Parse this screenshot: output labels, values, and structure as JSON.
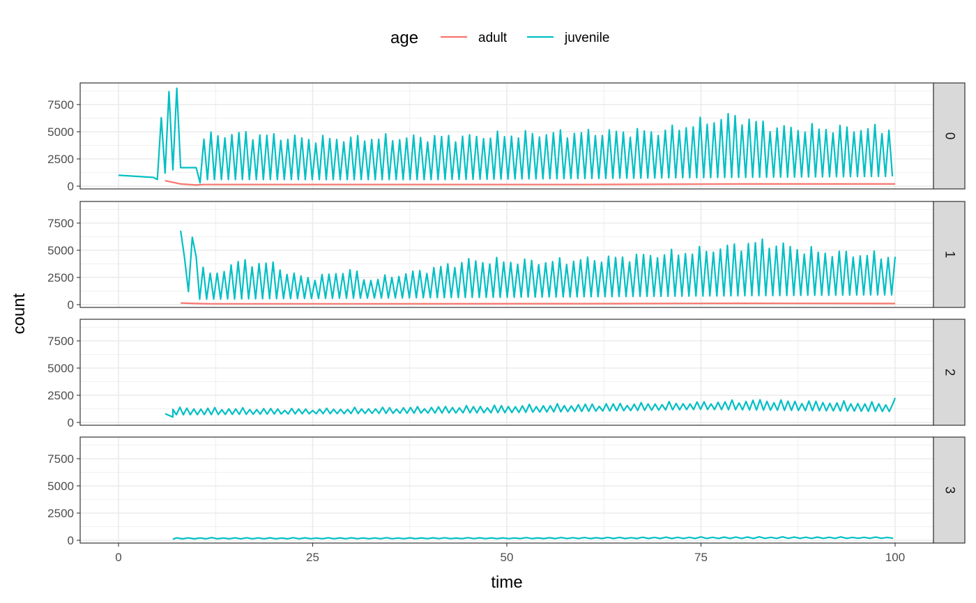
{
  "chart_data": {
    "type": "line",
    "xlabel": "time",
    "ylabel": "count",
    "xlim": [
      0,
      100
    ],
    "ylim": [
      0,
      9000
    ],
    "x_ticks": [
      0,
      25,
      50,
      75,
      100
    ],
    "x_tick_labels": [
      "0",
      "25",
      "50",
      "75",
      "100"
    ],
    "y_ticks": [
      0,
      2500,
      5000,
      7500
    ],
    "y_tick_labels": [
      "0",
      "2500",
      "5000",
      "7500"
    ],
    "facet_by": "stage",
    "facets": [
      "0",
      "1",
      "2",
      "3"
    ],
    "legend": {
      "title": "age",
      "position": "top",
      "entries": [
        {
          "label": "adult",
          "color": "#F8766D"
        },
        {
          "label": "juvenile",
          "color": "#00BFC4"
        }
      ]
    },
    "grid": true,
    "panels": [
      {
        "facet": "0",
        "series": [
          {
            "name": "adult",
            "x": [
              6,
              8,
              10,
              11,
              20,
              40,
              60,
              80,
              100
            ],
            "y": [
              500,
              200,
              100,
              150,
              150,
              150,
              150,
              200,
              200
            ]
          },
          {
            "name": "juvenile",
            "type": "oscillating",
            "keypoints": [
              [
                0,
                1000
              ],
              [
                4.5,
                800
              ],
              [
                5,
                600
              ],
              [
                5.5,
                6300
              ],
              [
                6,
                1200
              ],
              [
                6.5,
                8700
              ],
              [
                7,
                1500
              ],
              [
                7.5,
                9000
              ],
              [
                8,
                1700
              ],
              [
                10,
                1700
              ],
              [
                10.5,
                300
              ]
            ],
            "start": 11,
            "end": 100,
            "period": 0.9,
            "peak_env": [
              [
                11,
                4500
              ],
              [
                15,
                4800
              ],
              [
                25,
                4300
              ],
              [
                45,
                4500
              ],
              [
                55,
                4800
              ],
              [
                70,
                5000
              ],
              [
                79,
                6400
              ],
              [
                85,
                5300
              ],
              [
                100,
                5200
              ]
            ],
            "trough_env": [
              [
                11,
                600
              ],
              [
                40,
                600
              ],
              [
                100,
                900
              ]
            ]
          }
        ]
      },
      {
        "facet": "1",
        "series": [
          {
            "name": "adult",
            "x": [
              8,
              10,
              12,
              30,
              60,
              80,
              100
            ],
            "y": [
              150,
              100,
              80,
              80,
              90,
              120,
              100
            ]
          },
          {
            "name": "juvenile",
            "type": "oscillating",
            "keypoints": [
              [
                8,
                6800
              ],
              [
                8.5,
                4300
              ],
              [
                9,
                1200
              ],
              [
                9.5,
                6200
              ]
            ],
            "start": 10,
            "end": 100,
            "period": 0.9,
            "peak_env": [
              [
                10,
                4500
              ],
              [
                12,
                2500
              ],
              [
                15,
                3900
              ],
              [
                20,
                3700
              ],
              [
                22,
                2800
              ],
              [
                25,
                2400
              ],
              [
                30,
                3200
              ],
              [
                32,
                2200
              ],
              [
                40,
                3200
              ],
              [
                45,
                4000
              ],
              [
                55,
                3900
              ],
              [
                65,
                4300
              ],
              [
                75,
                4900
              ],
              [
                83,
                5700
              ],
              [
                90,
                4800
              ],
              [
                100,
                4400
              ]
            ],
            "trough_env": [
              [
                10,
                500
              ],
              [
                100,
                900
              ]
            ]
          }
        ]
      },
      {
        "facet": "2",
        "series": [
          {
            "name": "juvenile",
            "type": "oscillating",
            "keypoints": [
              [
                6,
                800
              ],
              [
                7,
                500
              ]
            ],
            "start": 7,
            "end": 100,
            "period": 0.9,
            "peak_env": [
              [
                7,
                1300
              ],
              [
                25,
                1200
              ],
              [
                50,
                1500
              ],
              [
                75,
                1800
              ],
              [
                82,
                2000
              ],
              [
                100,
                1700
              ]
            ],
            "trough_env": [
              [
                7,
                700
              ],
              [
                25,
                800
              ],
              [
                50,
                900
              ],
              [
                75,
                1200
              ],
              [
                100,
                1000
              ]
            ],
            "final": [
              100,
              2250
            ]
          }
        ]
      },
      {
        "facet": "3",
        "series": [
          {
            "name": "juvenile",
            "type": "oscillating",
            "keypoints": [
              [
                7,
                100
              ]
            ],
            "start": 7.5,
            "end": 100,
            "period": 1.5,
            "peak_env": [
              [
                7.5,
                220
              ],
              [
                50,
                220
              ],
              [
                82,
                300
              ],
              [
                100,
                270
              ]
            ],
            "trough_env": [
              [
                7.5,
                130
              ],
              [
                50,
                150
              ],
              [
                100,
                180
              ]
            ]
          }
        ]
      }
    ]
  }
}
